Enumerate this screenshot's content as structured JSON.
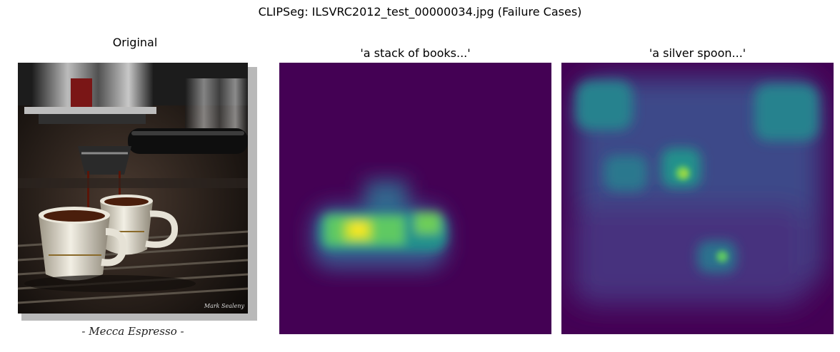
{
  "figure": {
    "title": "CLIPSeg: ILSVRC2012_test_00000034.jpg (Failure Cases)"
  },
  "panels": [
    {
      "title": "Original",
      "caption": "- Mecca Espresso -",
      "watermark": "Mark Sealeny"
    },
    {
      "title": "'a stack of books...'"
    },
    {
      "title": "'a silver spoon...'"
    }
  ],
  "colormap": "viridis",
  "colors": {
    "viridis_low": "#440154",
    "viridis_mid": "#21918c",
    "viridis_high": "#fde725"
  }
}
